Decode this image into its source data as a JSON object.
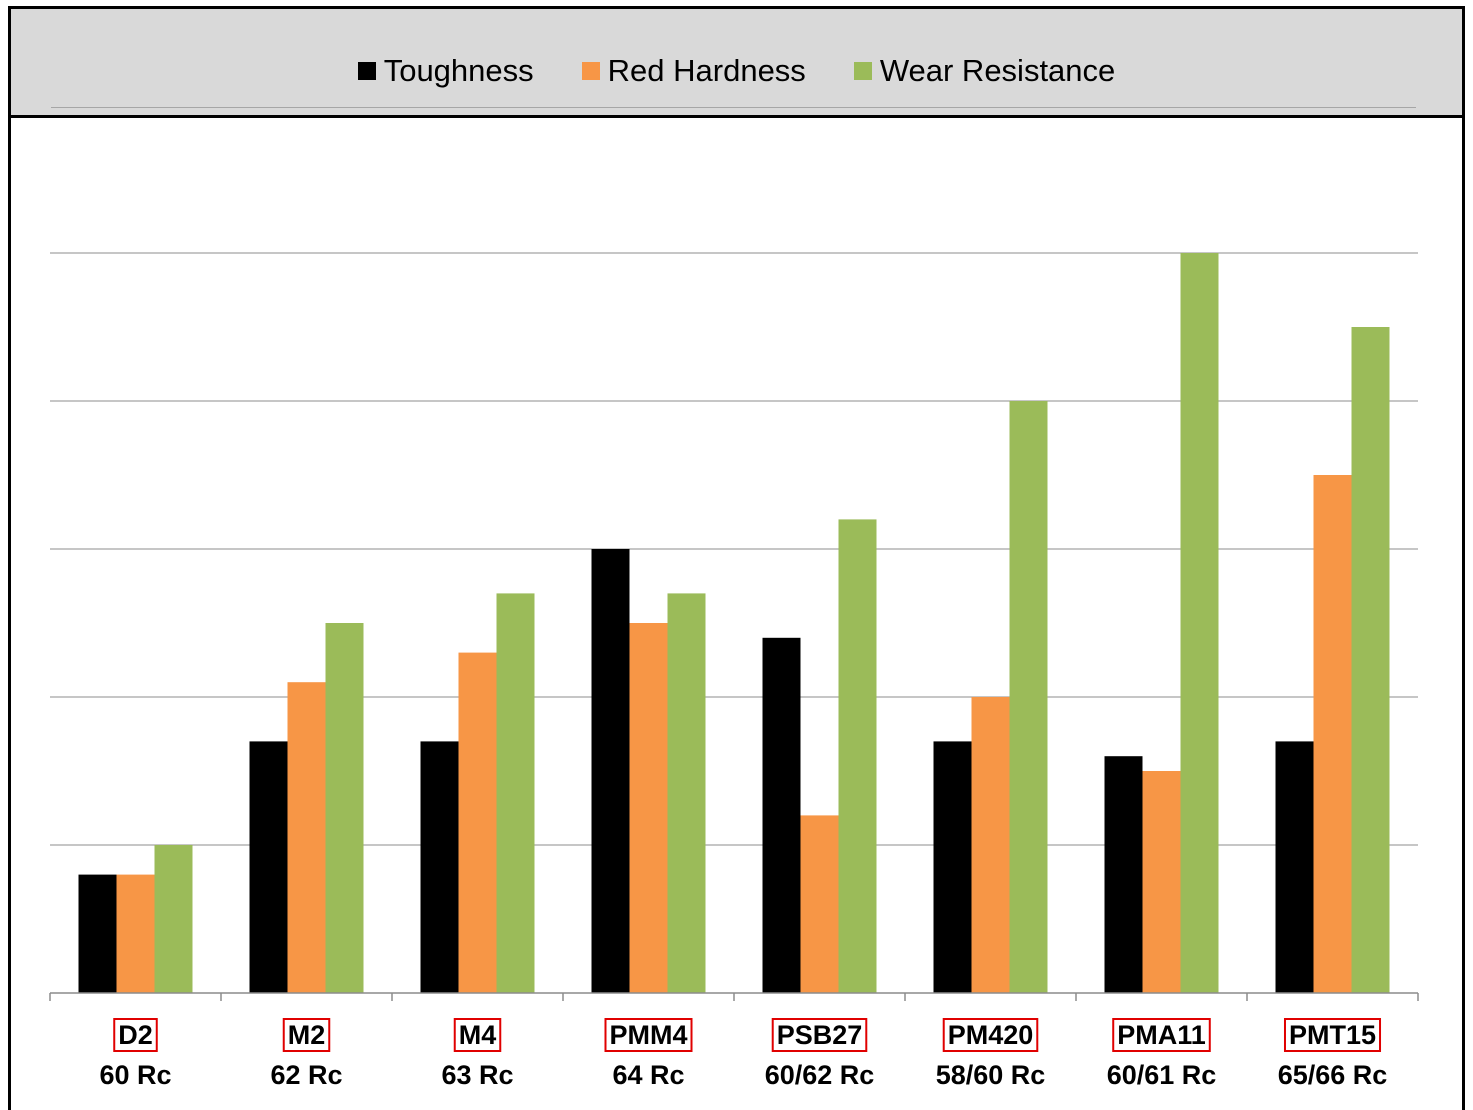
{
  "chart_data": {
    "type": "bar",
    "categories": [
      "D2",
      "M2",
      "M4",
      "PMM4",
      "PSB27",
      "PM420",
      "PMA11",
      "PMT15"
    ],
    "hardness": [
      "60 Rc",
      "62 Rc",
      "63 Rc",
      "64 Rc",
      "60/62 Rc",
      "58/60 Rc",
      "60/61 Rc",
      "65/66 Rc"
    ],
    "series": [
      {
        "name": "Toughness",
        "color": "#000000",
        "values": [
          1.6,
          3.4,
          3.4,
          6.0,
          4.8,
          3.4,
          3.2,
          3.4
        ]
      },
      {
        "name": "Red Hardness",
        "color": "#f79646",
        "values": [
          1.6,
          4.2,
          4.6,
          5.0,
          2.4,
          4.0,
          3.0,
          7.0
        ]
      },
      {
        "name": "Wear Resistance",
        "color": "#9bbb59",
        "values": [
          2.0,
          5.0,
          5.4,
          5.4,
          6.4,
          8.0,
          10.0,
          9.0
        ]
      }
    ],
    "ylim": [
      0,
      10
    ],
    "gridlines": [
      2,
      4,
      6,
      8,
      10
    ],
    "grid": true,
    "legend_position": "top",
    "highlight_color": "#e00000"
  }
}
